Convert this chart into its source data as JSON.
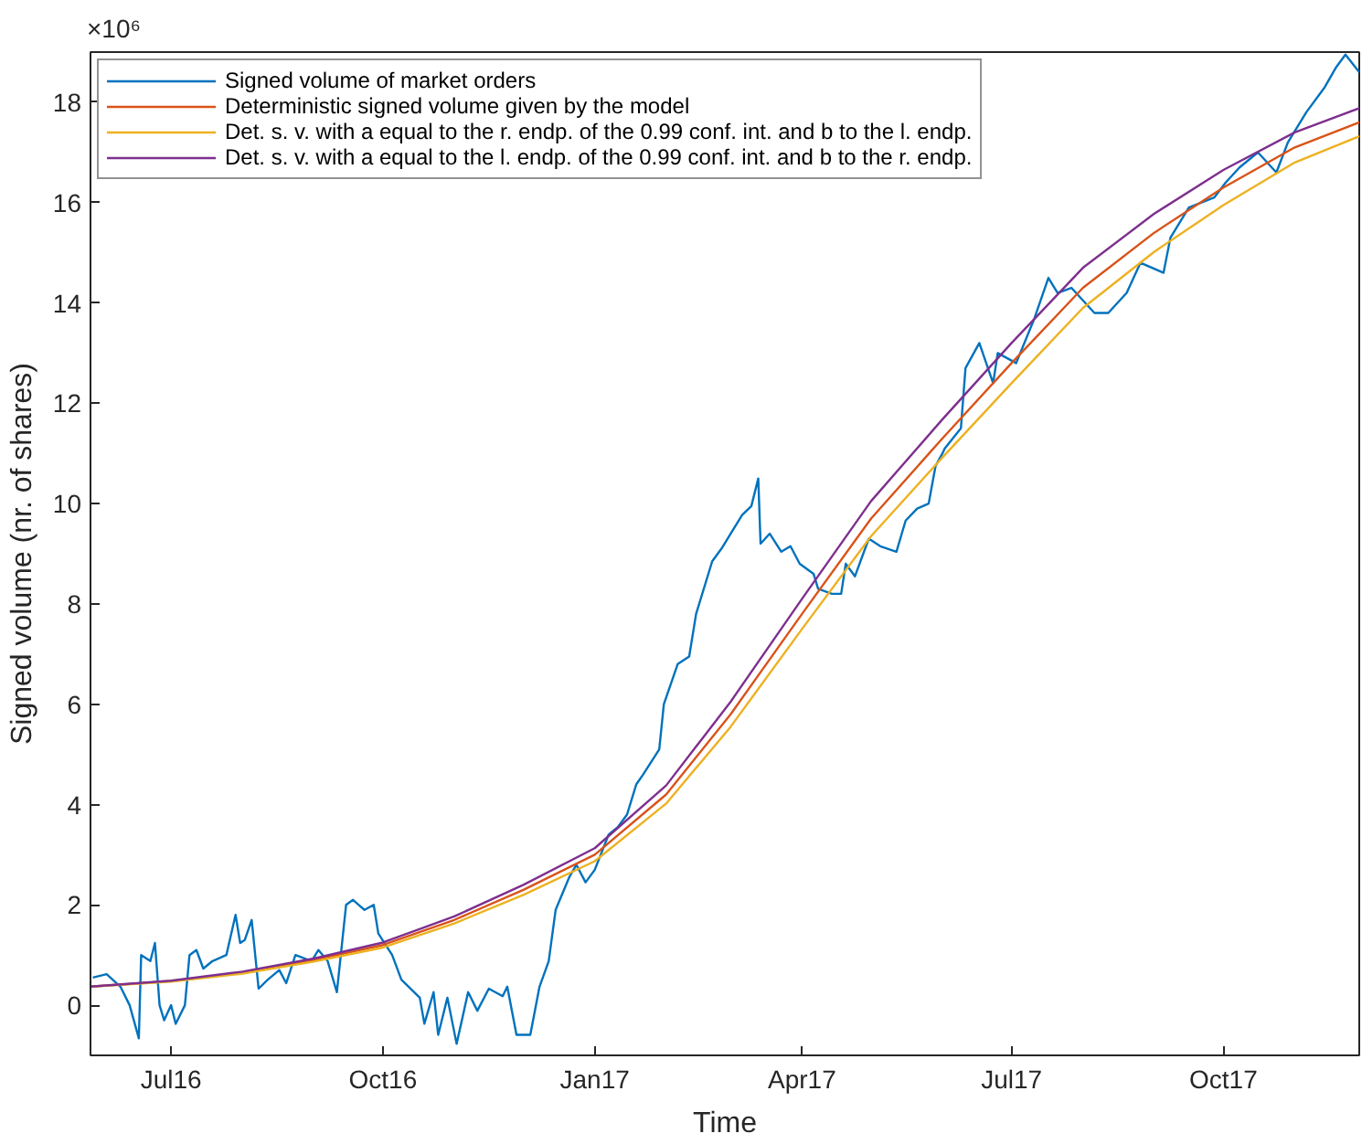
{
  "chart_data": {
    "type": "line",
    "xlabel": "Time",
    "ylabel": "Signed volume (nr. of shares)",
    "annotations": [
      "×10⁶"
    ],
    "xlim": [
      "2016-05-27",
      "2017-11-29"
    ],
    "ylim": [
      -1,
      19
    ],
    "xticks": [
      {
        "value": "2016-07-01",
        "label": "Jul16"
      },
      {
        "value": "2016-10-01",
        "label": "Oct16"
      },
      {
        "value": "2017-01-01",
        "label": "Jan17"
      },
      {
        "value": "2017-04-01",
        "label": "Apr17"
      },
      {
        "value": "2017-07-01",
        "label": "Jul17"
      },
      {
        "value": "2017-10-01",
        "label": "Oct17"
      }
    ],
    "yticks": [
      0,
      2,
      4,
      6,
      8,
      10,
      12,
      14,
      16,
      18
    ],
    "grid": false,
    "legend": "top left",
    "marker": "none",
    "line_style": "solid",
    "series": [
      {
        "name": "Signed volume of market orders",
        "color": "#0072bd",
        "x": [
          "2016-05-28",
          "2016-06-03",
          "2016-06-09",
          "2016-06-13",
          "2016-06-17",
          "2016-06-18",
          "2016-06-22",
          "2016-06-24",
          "2016-06-26",
          "2016-06-28",
          "2016-07-01",
          "2016-07-03",
          "2016-07-07",
          "2016-07-09",
          "2016-07-12",
          "2016-07-15",
          "2016-07-19",
          "2016-07-25",
          "2016-07-29",
          "2016-07-31",
          "2016-08-02",
          "2016-08-05",
          "2016-08-08",
          "2016-08-12",
          "2016-08-17",
          "2016-08-20",
          "2016-08-24",
          "2016-08-31",
          "2016-09-03",
          "2016-09-07",
          "2016-09-11",
          "2016-09-15",
          "2016-09-18",
          "2016-09-23",
          "2016-09-27",
          "2016-09-29",
          "2016-10-05",
          "2016-10-09",
          "2016-10-17",
          "2016-10-19",
          "2016-10-23",
          "2016-10-25",
          "2016-10-29",
          "2016-11-02",
          "2016-11-07",
          "2016-11-11",
          "2016-11-16",
          "2016-11-22",
          "2016-11-24",
          "2016-11-28",
          "2016-12-04",
          "2016-12-08",
          "2016-12-12",
          "2016-12-15",
          "2016-12-21",
          "2016-12-24",
          "2016-12-28",
          "2017-01-01",
          "2017-01-07",
          "2017-01-11",
          "2017-01-15",
          "2017-01-19",
          "2017-01-22",
          "2017-01-29",
          "2017-01-31",
          "2017-02-06",
          "2017-02-11",
          "2017-02-14",
          "2017-02-21",
          "2017-02-25",
          "2017-03-01",
          "2017-03-06",
          "2017-03-10",
          "2017-03-13",
          "2017-03-14",
          "2017-03-18",
          "2017-03-23",
          "2017-03-27",
          "2017-03-31",
          "2017-04-06",
          "2017-04-08",
          "2017-04-14",
          "2017-04-18",
          "2017-04-20",
          "2017-04-24",
          "2017-04-30",
          "2017-05-05",
          "2017-05-12",
          "2017-05-16",
          "2017-05-21",
          "2017-05-26",
          "2017-05-29",
          "2017-06-01",
          "2017-06-02",
          "2017-06-09",
          "2017-06-11",
          "2017-06-17",
          "2017-06-23",
          "2017-06-25",
          "2017-07-03",
          "2017-07-11",
          "2017-07-17",
          "2017-07-21",
          "2017-07-27",
          "2017-08-06",
          "2017-08-12",
          "2017-08-20",
          "2017-08-26",
          "2017-09-05",
          "2017-09-08",
          "2017-09-16",
          "2017-09-27",
          "2017-10-02",
          "2017-10-08",
          "2017-10-16",
          "2017-10-24",
          "2017-10-29",
          "2017-11-06",
          "2017-11-14",
          "2017-11-19",
          "2017-11-23",
          "2017-11-29"
        ],
        "values": [
          0.55,
          0.62,
          0.37,
          0.0,
          -0.66,
          1.0,
          0.88,
          1.24,
          0,
          -0.3,
          0,
          -0.37,
          0,
          1.0,
          1.1,
          0.73,
          0.88,
          1.0,
          1.8,
          1.24,
          1.3,
          1.7,
          0.33,
          0.51,
          0.7,
          0.44,
          1.0,
          0.88,
          1.1,
          0.88,
          0.26,
          2.0,
          2.1,
          1.9,
          2.0,
          1.43,
          1.0,
          0.51,
          0.15,
          -0.37,
          0.26,
          -0.59,
          0.15,
          -0.77,
          0.26,
          -0.11,
          0.33,
          0.18,
          0.37,
          -0.59,
          -0.59,
          0.37,
          0.88,
          1.9,
          2.56,
          2.8,
          2.45,
          2.7,
          3.4,
          3.55,
          3.8,
          4.4,
          4.6,
          5.1,
          6.0,
          6.8,
          6.95,
          7.8,
          8.85,
          9.1,
          9.4,
          9.77,
          9.95,
          10.5,
          9.2,
          9.4,
          9.04,
          9.15,
          8.8,
          8.6,
          8.3,
          8.2,
          8.2,
          8.8,
          8.55,
          9.3,
          9.15,
          9.04,
          9.66,
          9.9,
          10.0,
          10.75,
          11.0,
          11.1,
          11.5,
          12.7,
          13.2,
          12.4,
          13.0,
          12.8,
          13.7,
          14.5,
          14.2,
          14.3,
          13.8,
          13.8,
          14.2,
          14.8,
          14.6,
          15.3,
          15.9,
          16.1,
          16.4,
          16.7,
          17.0,
          16.6,
          17.2,
          17.8,
          18.3,
          18.7,
          18.95,
          18.6
        ]
      },
      {
        "name": "Deterministic signed volume given by the model",
        "color": "#d95319",
        "x": [
          "2016-05-27",
          "2016-07-01",
          "2016-08-01",
          "2016-09-01",
          "2016-10-01",
          "2016-11-01",
          "2016-12-01",
          "2017-01-01",
          "2017-02-01",
          "2017-03-01",
          "2017-04-01",
          "2017-05-01",
          "2017-06-01",
          "2017-07-01",
          "2017-08-01",
          "2017-09-01",
          "2017-10-01",
          "2017-11-01",
          "2017-11-29"
        ],
        "values": [
          0.37,
          0.48,
          0.65,
          0.9,
          1.2,
          1.7,
          2.3,
          3.0,
          4.2,
          5.8,
          7.8,
          9.7,
          11.3,
          12.8,
          14.3,
          15.4,
          16.3,
          17.1,
          17.6
        ]
      },
      {
        "name": "Det. s. v. with a equal to the r. endp. of the 0.99 conf. int. and b to the l. endp.",
        "color": "#edb120",
        "x": [
          "2016-05-27",
          "2016-07-01",
          "2016-08-01",
          "2016-09-01",
          "2016-10-01",
          "2016-11-01",
          "2016-12-01",
          "2017-01-01",
          "2017-02-01",
          "2017-03-01",
          "2017-04-01",
          "2017-05-01",
          "2017-06-01",
          "2017-07-01",
          "2017-08-01",
          "2017-09-01",
          "2017-10-01",
          "2017-11-01",
          "2017-11-29"
        ],
        "values": [
          0.37,
          0.47,
          0.63,
          0.87,
          1.15,
          1.63,
          2.2,
          2.87,
          4.02,
          5.55,
          7.5,
          9.35,
          10.92,
          12.4,
          13.9,
          15.02,
          15.95,
          16.8,
          17.32
        ]
      },
      {
        "name": "Det. s. v. with a equal to the l. endp. of the 0.99 conf. int. and b to the r. endp.",
        "color": "#7e2f8e",
        "x": [
          "2016-05-27",
          "2016-07-01",
          "2016-08-01",
          "2016-09-01",
          "2016-10-01",
          "2016-11-01",
          "2016-12-01",
          "2017-01-01",
          "2017-02-01",
          "2017-03-01",
          "2017-04-01",
          "2017-05-01",
          "2017-06-01",
          "2017-07-01",
          "2017-08-01",
          "2017-09-01",
          "2017-10-01",
          "2017-11-01",
          "2017-11-29"
        ],
        "values": [
          0.37,
          0.49,
          0.67,
          0.93,
          1.25,
          1.77,
          2.4,
          3.13,
          4.38,
          6.05,
          8.1,
          10.05,
          11.68,
          13.2,
          14.7,
          15.78,
          16.65,
          17.4,
          17.88
        ]
      }
    ]
  }
}
